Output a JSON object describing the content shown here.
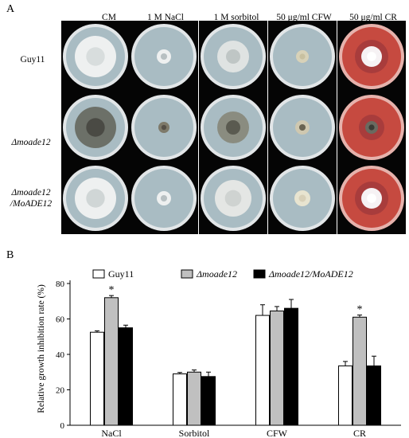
{
  "panel_a": {
    "letter": "A",
    "columns": [
      "CM",
      "1 M NaCl",
      "1 M sorbitol",
      "50 μg/ml CFW",
      "50 μg/ml CR"
    ],
    "rows": [
      {
        "label": "Guy11"
      },
      {
        "label": "Δmoade12"
      },
      {
        "label_line1": "Δmoade12",
        "label_line2": "/MoADE12"
      }
    ],
    "colors": {
      "plate_default": "#a9bcc3",
      "plate_cr": "#c64a40",
      "rim": "#e2e6e8",
      "colony_white": "#eef0f0",
      "colony_dark": "#4a4a44"
    }
  },
  "panel_b": {
    "letter": "B",
    "chart_data": {
      "type": "bar",
      "categories": [
        "NaCl",
        "Sorbitol",
        "CFW",
        "CR"
      ],
      "ylabel": "Relative growth inhibition rate (%)",
      "ylim": [
        0,
        80
      ],
      "yticks": [
        "0",
        "20",
        "40",
        "60",
        "80"
      ],
      "series": [
        {
          "name": "Guy11",
          "color": "#ffffff",
          "values": [
            52.5,
            29,
            62,
            33.5
          ],
          "errors": [
            0.8,
            0.8,
            6,
            2.5
          ]
        },
        {
          "name": "Δmoade12",
          "color": "#c0c0c0",
          "values": [
            72,
            30,
            64.5,
            61
          ],
          "errors": [
            1.2,
            1.2,
            2.5,
            1.2
          ]
        },
        {
          "name": "Δmoade12/MoADE12",
          "color": "#000000",
          "values": [
            55,
            27.5,
            66,
            33.5
          ],
          "errors": [
            1.5,
            2.5,
            5,
            5.5
          ]
        }
      ],
      "significance": [
        {
          "category": "NaCl",
          "series": "Δmoade12",
          "mark": "*"
        },
        {
          "category": "CR",
          "series": "Δmoade12",
          "mark": "*"
        }
      ],
      "legend_position": "top",
      "grid": false
    }
  }
}
